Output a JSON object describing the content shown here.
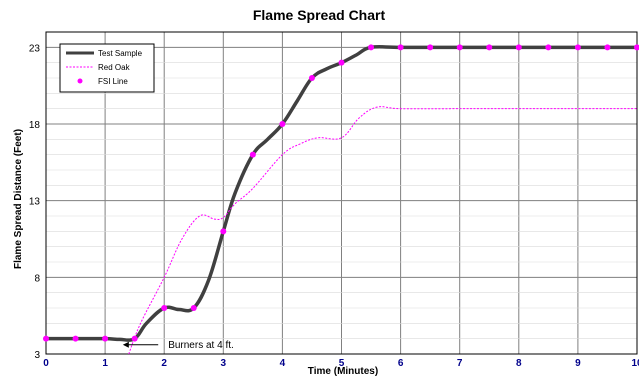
{
  "chart_data": {
    "type": "line",
    "title": "Flame Spread Chart",
    "xlabel": "Time (Minutes)",
    "ylabel": "Flame Spread Distance (Feet)",
    "xlim": [
      0,
      10
    ],
    "ylim": [
      3,
      24
    ],
    "x_ticks": [
      "0",
      "1",
      "2",
      "3",
      "4",
      "5",
      "6",
      "7",
      "8",
      "9",
      "10"
    ],
    "y_ticks": [
      "3",
      "8",
      "13",
      "18",
      "23"
    ],
    "grid": true,
    "legend_position": "top-left",
    "series": [
      {
        "name": "Test Sample",
        "style": "solid-thick",
        "color": "#404040",
        "points": [
          [
            0,
            4
          ],
          [
            0.5,
            4
          ],
          [
            1,
            4
          ],
          [
            1.25,
            3.95
          ],
          [
            1.5,
            4
          ],
          [
            1.7,
            5
          ],
          [
            2,
            6
          ],
          [
            2.25,
            5.9
          ],
          [
            2.5,
            6
          ],
          [
            2.75,
            7.8
          ],
          [
            3,
            11
          ],
          [
            3.2,
            13.5
          ],
          [
            3.5,
            16
          ],
          [
            3.75,
            17
          ],
          [
            4,
            18
          ],
          [
            4.25,
            19.5
          ],
          [
            4.5,
            21
          ],
          [
            4.75,
            21.6
          ],
          [
            5,
            22
          ],
          [
            5.25,
            22.5
          ],
          [
            5.5,
            23
          ],
          [
            6,
            23
          ],
          [
            7,
            23
          ],
          [
            8,
            23
          ],
          [
            9,
            23
          ],
          [
            10,
            23
          ]
        ]
      },
      {
        "name": "Red Oak",
        "style": "dotted",
        "color": "#ff00ff",
        "points": [
          [
            1.4,
            3
          ],
          [
            1.6,
            5
          ],
          [
            2,
            8
          ],
          [
            2.3,
            10.5
          ],
          [
            2.6,
            12
          ],
          [
            2.85,
            11.8
          ],
          [
            3,
            11.9
          ],
          [
            3.2,
            12.8
          ],
          [
            3.5,
            13.8
          ],
          [
            4,
            16
          ],
          [
            4.3,
            16.7
          ],
          [
            4.6,
            17.1
          ],
          [
            5,
            17.1
          ],
          [
            5.3,
            18.4
          ],
          [
            5.6,
            19.1
          ],
          [
            6,
            19
          ],
          [
            7,
            19
          ],
          [
            8,
            19
          ],
          [
            9,
            19
          ],
          [
            10,
            19
          ]
        ]
      },
      {
        "name": "FSI Line",
        "style": "markers",
        "color": "#ff00ff",
        "points": [
          [
            0,
            4
          ],
          [
            0.5,
            4
          ],
          [
            1,
            4
          ],
          [
            1.5,
            4
          ],
          [
            2,
            6
          ],
          [
            2.5,
            6
          ],
          [
            3,
            11
          ],
          [
            3.5,
            16
          ],
          [
            4,
            18
          ],
          [
            4.5,
            21
          ],
          [
            5,
            22
          ],
          [
            5.5,
            23
          ],
          [
            6,
            23
          ],
          [
            6.5,
            23
          ],
          [
            7,
            23
          ],
          [
            7.5,
            23
          ],
          [
            8,
            23
          ],
          [
            8.5,
            23
          ],
          [
            9,
            23
          ],
          [
            9.5,
            23
          ],
          [
            10,
            23
          ]
        ]
      }
    ],
    "annotations": [
      {
        "text": "Burners at 4 ft.",
        "x": 2,
        "y": 3.6,
        "arrow_to_x": 1.3
      }
    ]
  }
}
